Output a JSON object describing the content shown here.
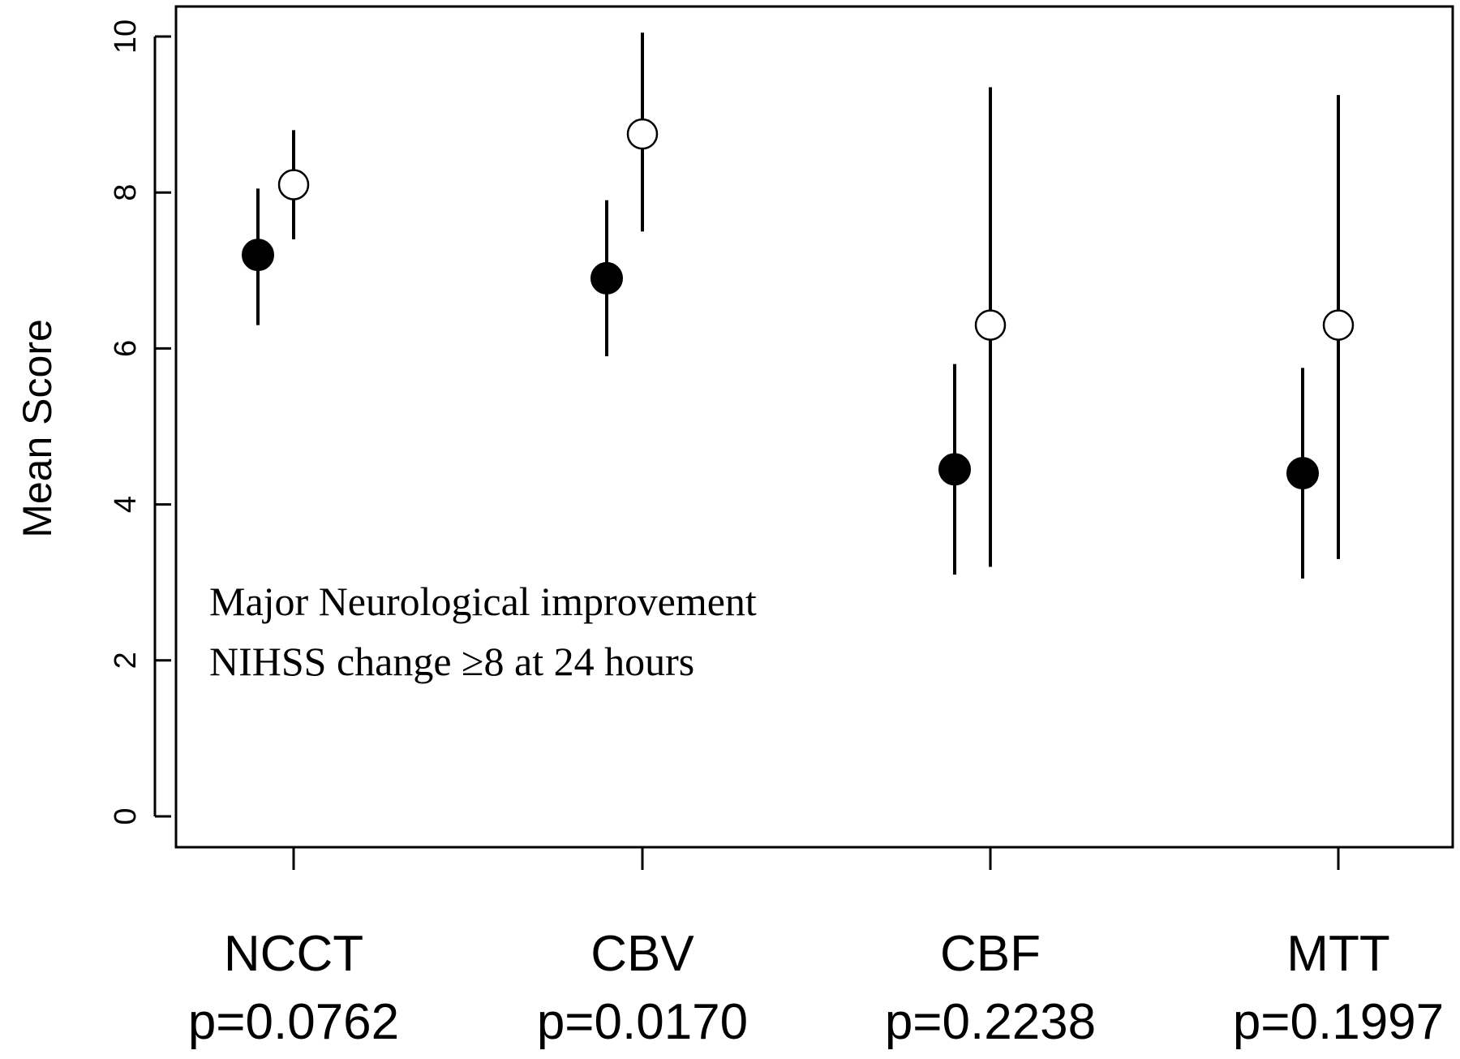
{
  "chart_data": {
    "type": "scatter",
    "ylabel": "Mean Score",
    "xlabel": "",
    "ylim": [
      0,
      10
    ],
    "yticks": [
      "0",
      "2",
      "4",
      "6",
      "8",
      "10"
    ],
    "categories": [
      {
        "name": "NCCT",
        "pvalue": "p=0.0762"
      },
      {
        "name": "CBV",
        "pvalue": "p=0.0170"
      },
      {
        "name": "CBF",
        "pvalue": "p=0.2238"
      },
      {
        "name": "MTT",
        "pvalue": "p=0.1997"
      }
    ],
    "series": [
      {
        "marker": "filled-circle",
        "color": "#000000",
        "points": [
          {
            "mean": 7.2,
            "low": 6.3,
            "high": 8.05
          },
          {
            "mean": 6.9,
            "low": 5.9,
            "high": 7.9
          },
          {
            "mean": 4.45,
            "low": 3.1,
            "high": 5.8
          },
          {
            "mean": 4.4,
            "low": 3.05,
            "high": 5.75
          }
        ]
      },
      {
        "marker": "open-circle",
        "color": "#000000",
        "points": [
          {
            "mean": 8.1,
            "low": 7.4,
            "high": 8.8
          },
          {
            "mean": 8.75,
            "low": 7.5,
            "high": 10.05
          },
          {
            "mean": 6.3,
            "low": 3.2,
            "high": 9.35
          },
          {
            "mean": 6.3,
            "low": 3.3,
            "high": 9.25
          }
        ]
      }
    ],
    "annotations": [
      "Major Neurological improvement",
      "NIHSS change ≥8 at 24 hours"
    ],
    "grid": false
  }
}
